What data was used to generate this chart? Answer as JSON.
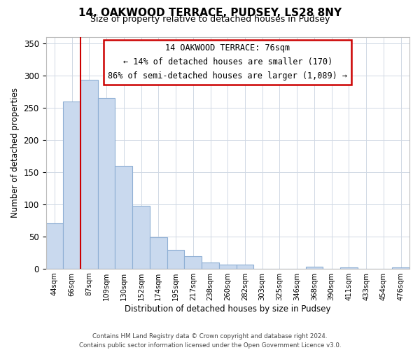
{
  "title": "14, OAKWOOD TERRACE, PUDSEY, LS28 8NY",
  "subtitle": "Size of property relative to detached houses in Pudsey",
  "xlabel": "Distribution of detached houses by size in Pudsey",
  "ylabel": "Number of detached properties",
  "bar_labels": [
    "44sqm",
    "66sqm",
    "87sqm",
    "109sqm",
    "130sqm",
    "152sqm",
    "174sqm",
    "195sqm",
    "217sqm",
    "238sqm",
    "260sqm",
    "282sqm",
    "303sqm",
    "325sqm",
    "346sqm",
    "368sqm",
    "390sqm",
    "411sqm",
    "433sqm",
    "454sqm",
    "476sqm"
  ],
  "bar_values": [
    70,
    260,
    293,
    265,
    160,
    98,
    49,
    29,
    19,
    10,
    6,
    6,
    0,
    0,
    0,
    3,
    0,
    2,
    0,
    0,
    2
  ],
  "bar_color": "#c9d9ee",
  "bar_edge_color": "#8eafd4",
  "ylim": [
    0,
    360
  ],
  "yticks": [
    0,
    50,
    100,
    150,
    200,
    250,
    300,
    350
  ],
  "vline_x_index": 1,
  "vline_color": "#cc0000",
  "annotation_title": "14 OAKWOOD TERRACE: 76sqm",
  "annotation_line1": "← 14% of detached houses are smaller (170)",
  "annotation_line2": "86% of semi-detached houses are larger (1,089) →",
  "footer_line1": "Contains HM Land Registry data © Crown copyright and database right 2024.",
  "footer_line2": "Contains public sector information licensed under the Open Government Licence v3.0.",
  "background_color": "#ffffff",
  "grid_color": "#d0d8e4"
}
